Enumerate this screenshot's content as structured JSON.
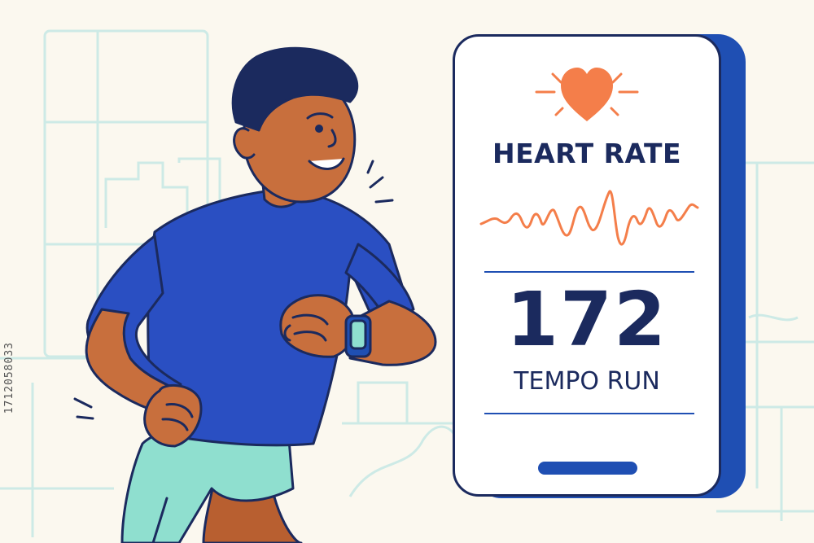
{
  "card": {
    "title": "HEART RATE",
    "bpm": "172",
    "activity": "TEMPO RUN"
  },
  "watermark": {
    "id": "1712058033"
  },
  "icons": [
    "heart-icon",
    "heartbeat-wave",
    "smartwatch-icon"
  ],
  "colors": {
    "background": "#fbf8ef",
    "navy": "#1b2a5e",
    "brand_blue": "#1f4fb3",
    "shirt_blue": "#2a4fc2",
    "heart_orange": "#f47e4a",
    "skin": "#c86f3d",
    "shorts_mint": "#8fdfcf",
    "city_lines": "#cdeae6"
  }
}
